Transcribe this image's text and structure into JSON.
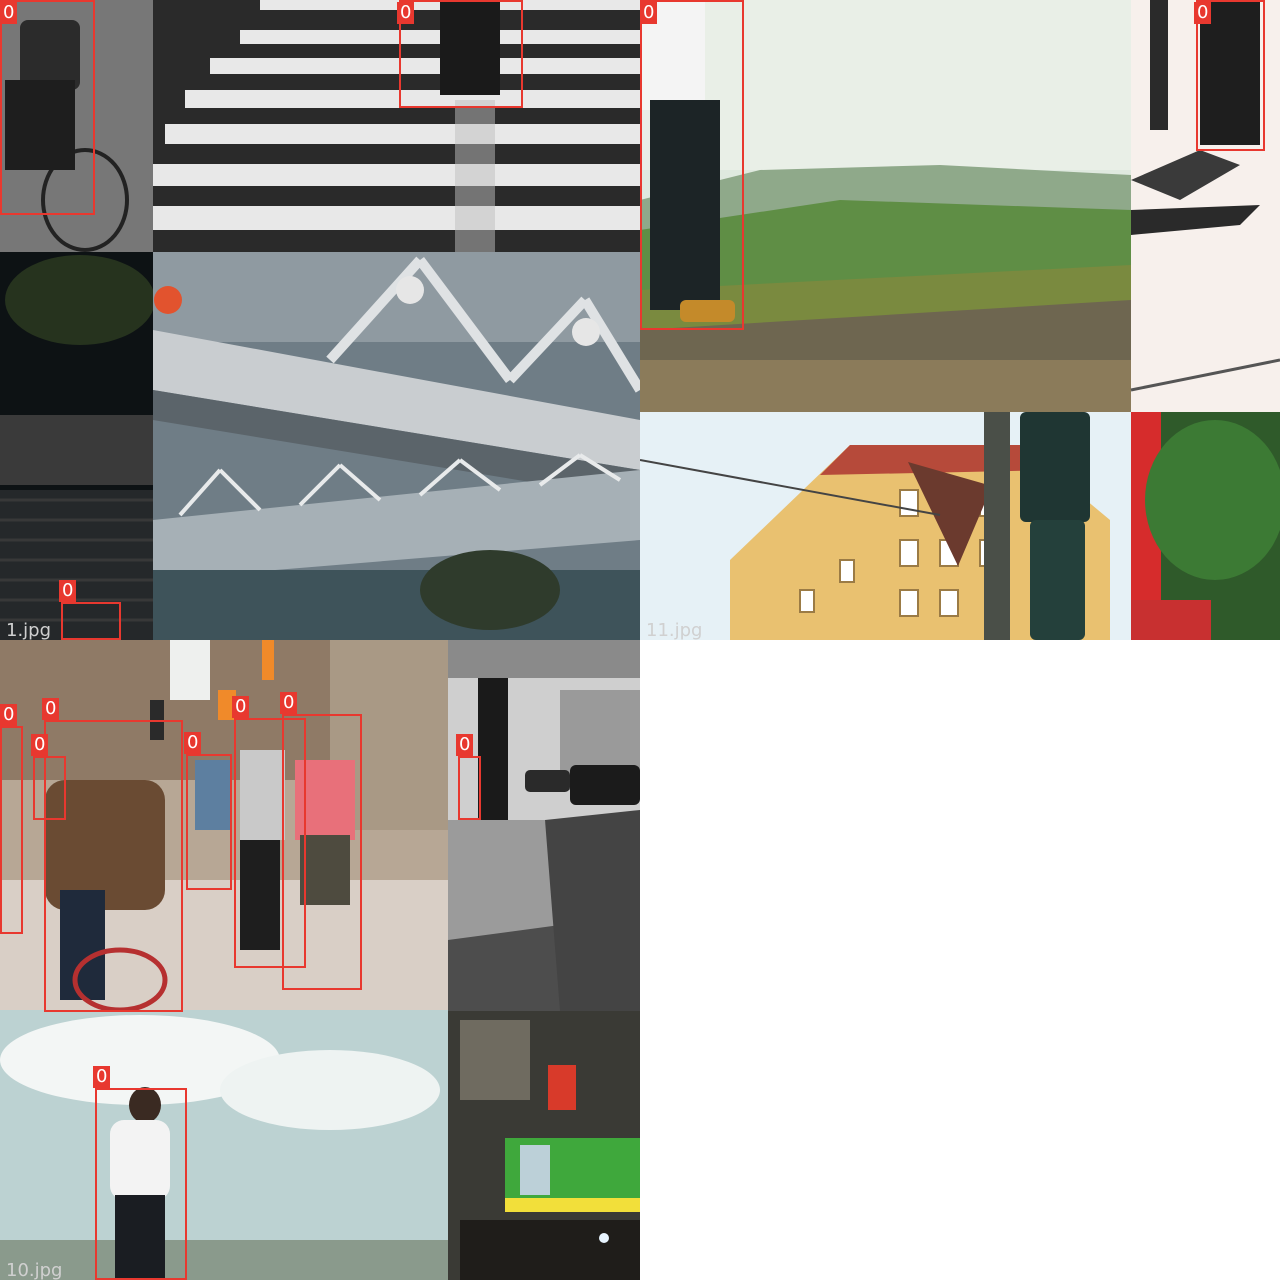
{
  "mosaics": [
    {
      "filename": "1.jpg"
    },
    {
      "filename": "11.jpg"
    },
    {
      "filename": "10.jpg"
    }
  ],
  "detection_label": "0",
  "detections": [
    {
      "class": "0"
    },
    {
      "class": "0"
    },
    {
      "class": "0"
    },
    {
      "class": "0"
    },
    {
      "class": "0"
    },
    {
      "class": "0"
    },
    {
      "class": "0"
    },
    {
      "class": "0"
    },
    {
      "class": "0"
    },
    {
      "class": "0"
    },
    {
      "class": "0"
    },
    {
      "class": "0"
    },
    {
      "class": "0"
    },
    {
      "class": "0"
    }
  ],
  "colors": {
    "box": "#e8382f",
    "label_text": "#ffffff",
    "filename_text": "#d0d0d0"
  }
}
